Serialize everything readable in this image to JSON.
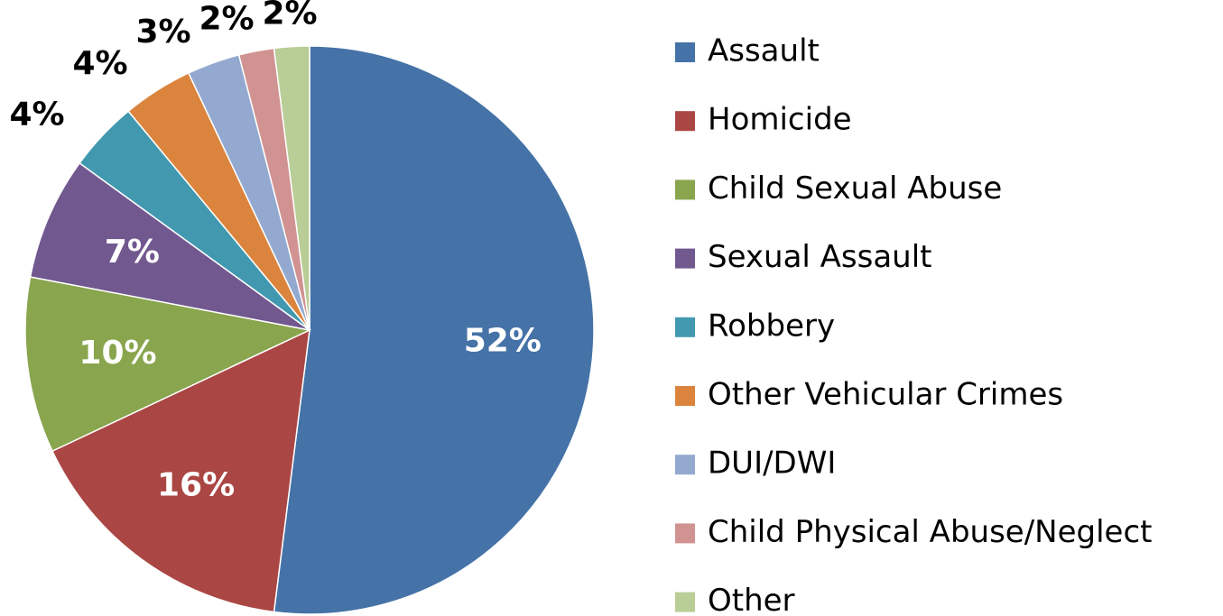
{
  "chart_data": {
    "type": "pie",
    "categories": [
      "Assault",
      "Homicide",
      "Child Sexual Abuse",
      "Sexual Assault",
      "Robbery",
      "Other Vehicular Crimes",
      "DUI/DWI",
      "Child Physical Abuse/Neglect",
      "Other"
    ],
    "values": [
      52,
      16,
      10,
      7,
      4,
      4,
      3,
      2,
      2
    ],
    "value_labels": [
      "52%",
      "16%",
      "10%",
      "7%",
      "4%",
      "4%",
      "3%",
      "2%",
      "2%"
    ],
    "colors": [
      "#4572a7",
      "#aa4643",
      "#89a54e",
      "#71588f",
      "#4198af",
      "#db843d",
      "#93a9cf",
      "#d19392",
      "#b9cd96"
    ],
    "legend": "right"
  }
}
